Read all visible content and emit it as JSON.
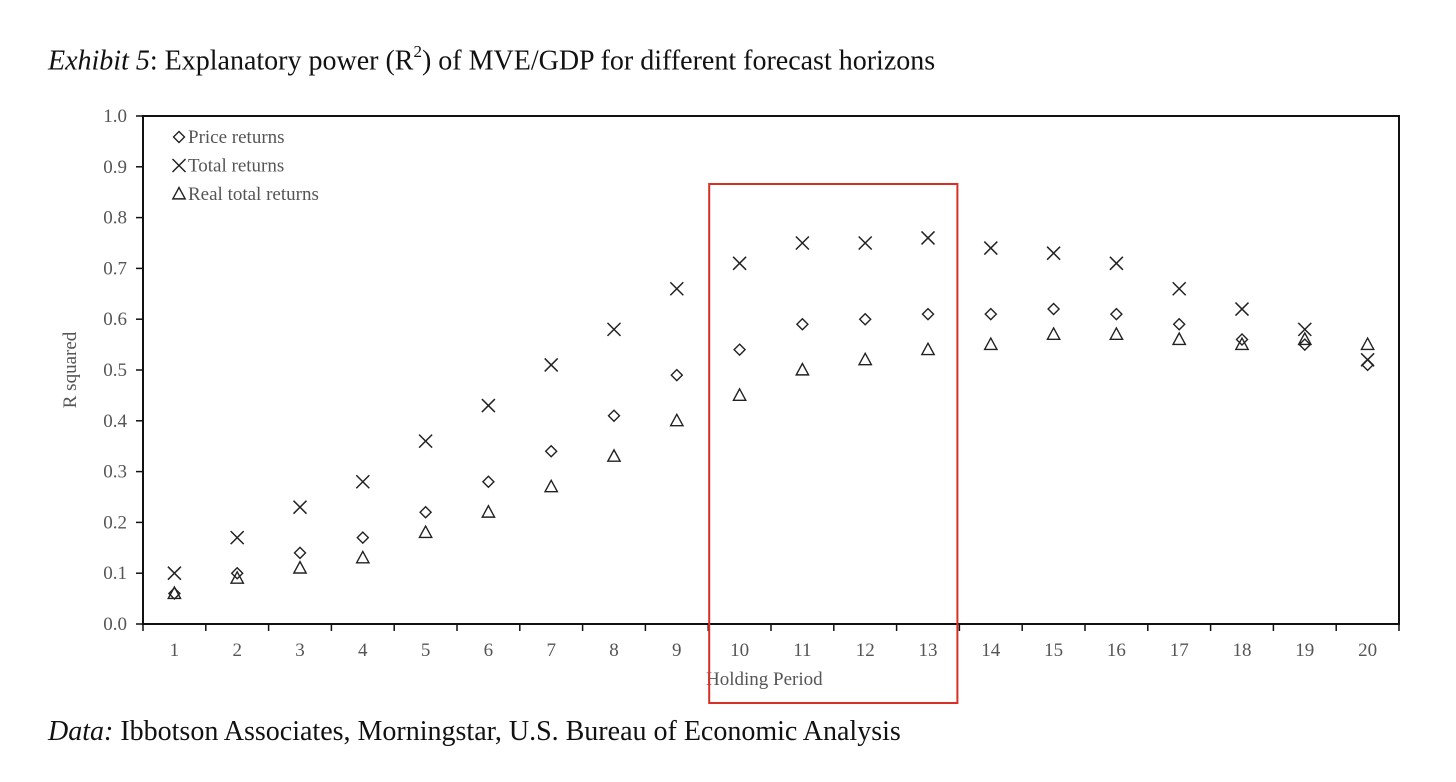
{
  "title": {
    "exhibit": "Exhibit 5",
    "text_before_sup": ": Explanatory power (R",
    "sup": "2",
    "text_after_sup": ") of MVE/GDP for different forecast horizons"
  },
  "source": {
    "label": "Data:",
    "text": " Ibbotson Associates, Morningstar, U.S. Bureau of Economic Analysis"
  },
  "colors": {
    "highlight": "#d93025",
    "marker": "#222222",
    "axis": "#111111"
  },
  "chart_data": {
    "type": "scatter",
    "xlabel": "Holding Period",
    "ylabel": "R squared",
    "x": [
      1,
      2,
      3,
      4,
      5,
      6,
      7,
      8,
      9,
      10,
      11,
      12,
      13,
      14,
      15,
      16,
      17,
      18,
      19,
      20
    ],
    "ylim": [
      0,
      1.0
    ],
    "yticks": [
      0.0,
      0.1,
      0.2,
      0.3,
      0.4,
      0.5,
      0.6,
      0.7,
      0.8,
      0.9,
      1.0
    ],
    "ytick_labels": [
      "0.0",
      "0.1",
      "0.2",
      "0.3",
      "0.4",
      "0.5",
      "0.6",
      "0.7",
      "0.8",
      "0.9",
      "1.0"
    ],
    "grid": false,
    "legend_position": "top-left",
    "series": [
      {
        "name": "Price returns",
        "marker": "diamond",
        "values": [
          0.06,
          0.1,
          0.14,
          0.17,
          0.22,
          0.28,
          0.34,
          0.41,
          0.49,
          0.54,
          0.59,
          0.6,
          0.61,
          0.61,
          0.62,
          0.61,
          0.59,
          0.56,
          0.55,
          0.51
        ]
      },
      {
        "name": "Total returns",
        "marker": "x",
        "values": [
          0.1,
          0.17,
          0.23,
          0.28,
          0.36,
          0.43,
          0.51,
          0.58,
          0.66,
          0.71,
          0.75,
          0.75,
          0.76,
          0.74,
          0.73,
          0.71,
          0.66,
          0.62,
          0.58,
          0.52
        ]
      },
      {
        "name": "Real total returns",
        "marker": "triangle",
        "values": [
          0.06,
          0.09,
          0.11,
          0.13,
          0.18,
          0.22,
          0.27,
          0.33,
          0.4,
          0.45,
          0.5,
          0.52,
          0.54,
          0.55,
          0.57,
          0.57,
          0.56,
          0.55,
          0.56,
          0.55
        ]
      }
    ],
    "highlight": {
      "x_range": [
        10,
        13
      ]
    }
  }
}
